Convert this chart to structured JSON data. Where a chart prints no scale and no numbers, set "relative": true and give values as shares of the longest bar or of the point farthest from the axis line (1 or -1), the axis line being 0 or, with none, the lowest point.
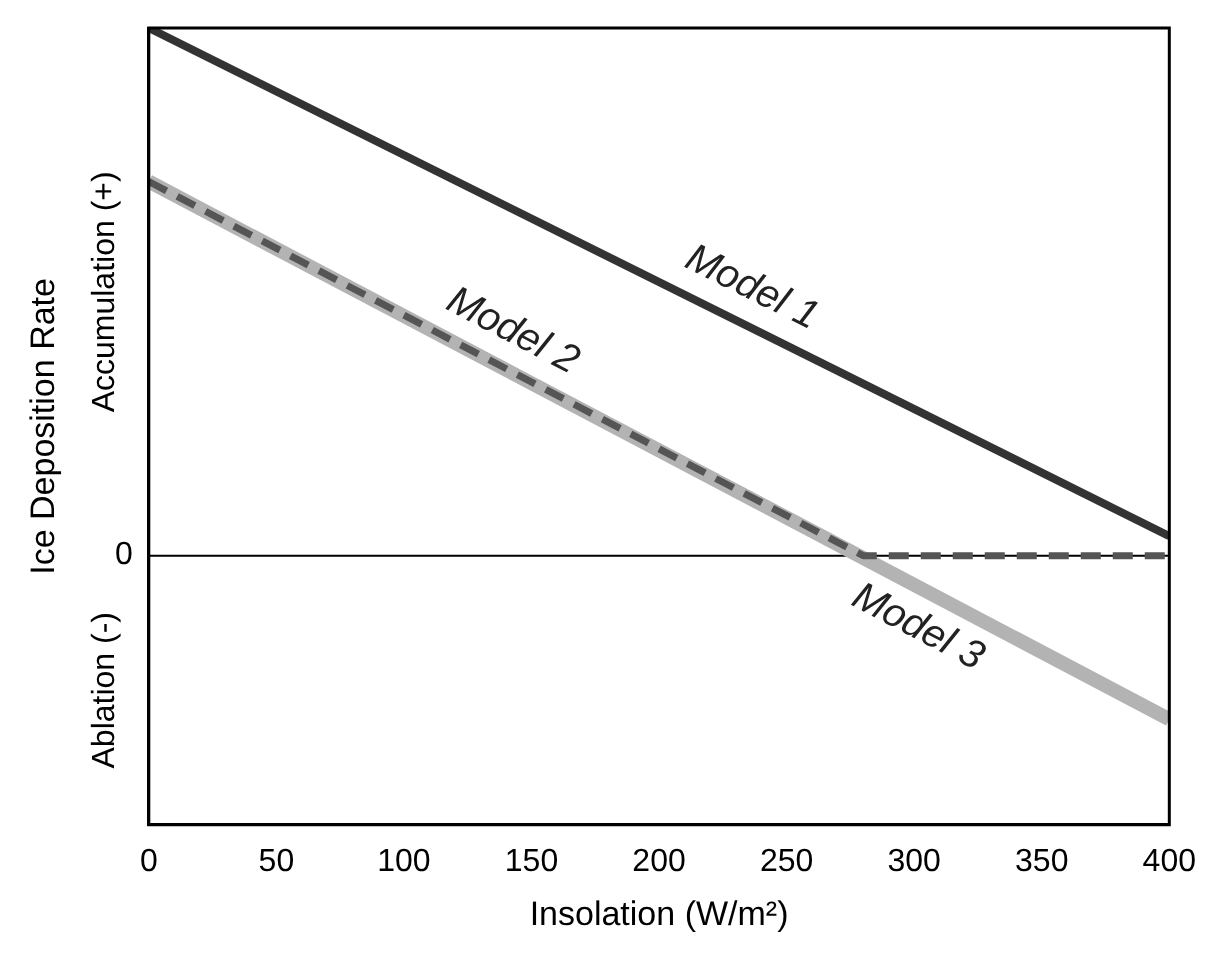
{
  "chart_data": {
    "type": "line",
    "relative": true,
    "xlabel": "Insolation (W/m²)",
    "ylabel": "Ice Deposition Rate",
    "annotations": [
      "Accumulation (+)",
      "Ablation (-)"
    ],
    "xlim": [
      0,
      400
    ],
    "xticks": [
      0,
      50,
      100,
      150,
      200,
      250,
      300,
      350,
      400
    ],
    "grid": false,
    "legend": false,
    "marker": "none",
    "ref_lines": [
      {
        "axis": "y",
        "value": 0,
        "label": "0",
        "color": "#000000"
      }
    ],
    "series": [
      {
        "name": "Model 1",
        "color": "#333333",
        "x": [
          0,
          400
        ],
        "values": [
          1,
          0.037
        ],
        "line_style": "solid"
      },
      {
        "name": "Model 3",
        "color": "#b3b3b3",
        "x": [
          0,
          400
        ],
        "values": [
          0.709,
          -0.31
        ],
        "line_style": "solid"
      },
      {
        "name": "Model 2",
        "color": "#555555",
        "x": [
          0,
          280,
          400
        ],
        "values": [
          0.709,
          0,
          0
        ],
        "line_style": "dashed"
      }
    ]
  }
}
